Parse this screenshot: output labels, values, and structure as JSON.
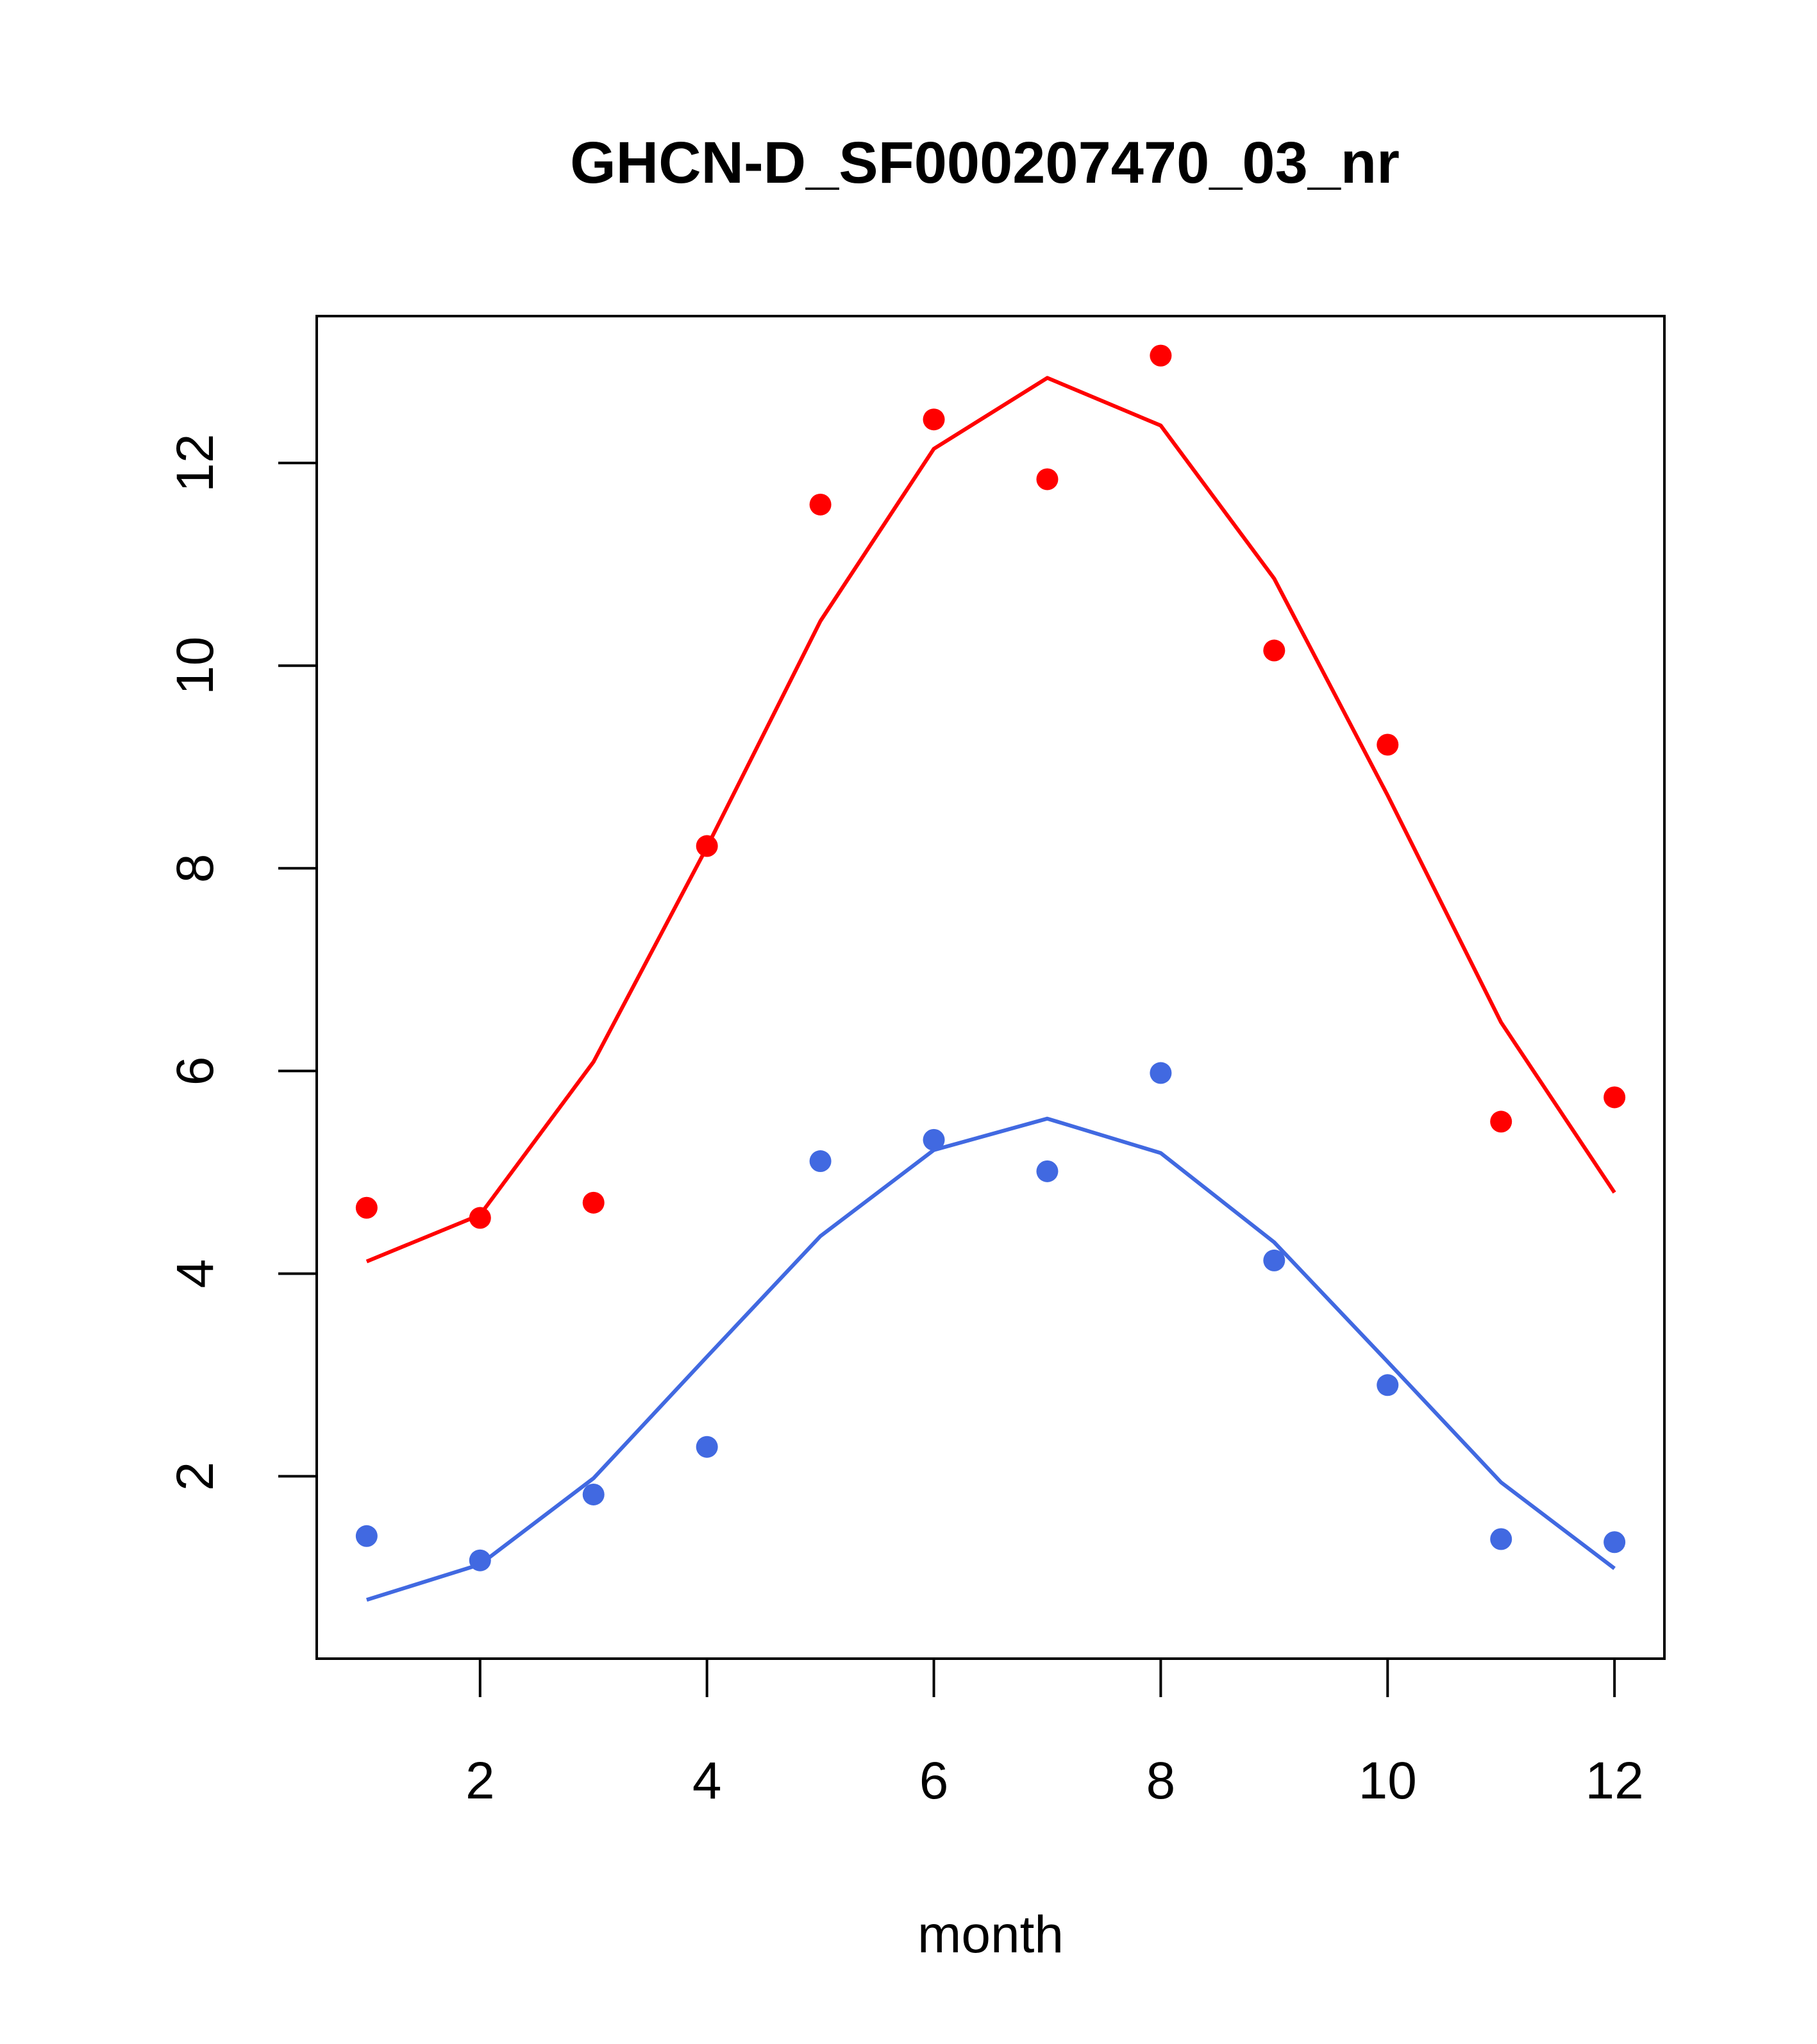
{
  "chart_data": {
    "type": "scatter",
    "title": "GHCN-D_SF000207470_03_nr",
    "xlabel": "month",
    "ylabel": "",
    "xlim": [
      0.56,
      12.44
    ],
    "ylim": [
      0.2,
      13.45
    ],
    "x_ticks": [
      2,
      4,
      6,
      8,
      10,
      12
    ],
    "y_ticks": [
      2,
      4,
      6,
      8,
      10,
      12
    ],
    "x": [
      1,
      2,
      3,
      4,
      5,
      6,
      7,
      8,
      9,
      10,
      11,
      12
    ],
    "series": [
      {
        "color": "#ff0000",
        "points": [
          4.65,
          4.55,
          4.7,
          8.22,
          11.59,
          12.43,
          11.84,
          13.06,
          10.15,
          9.22,
          5.5,
          5.74
        ],
        "fit": [
          4.12,
          4.58,
          6.09,
          8.21,
          10.44,
          12.14,
          12.84,
          12.37,
          10.86,
          8.72,
          6.48,
          4.8
        ]
      },
      {
        "color": "#4169e1",
        "points": [
          1.41,
          1.17,
          1.82,
          2.29,
          5.11,
          5.32,
          5.01,
          5.98,
          4.13,
          2.9,
          1.38,
          1.35
        ],
        "fit": [
          0.78,
          1.13,
          1.98,
          3.18,
          4.37,
          5.22,
          5.53,
          5.19,
          4.31,
          3.13,
          1.94,
          1.09
        ]
      }
    ]
  }
}
